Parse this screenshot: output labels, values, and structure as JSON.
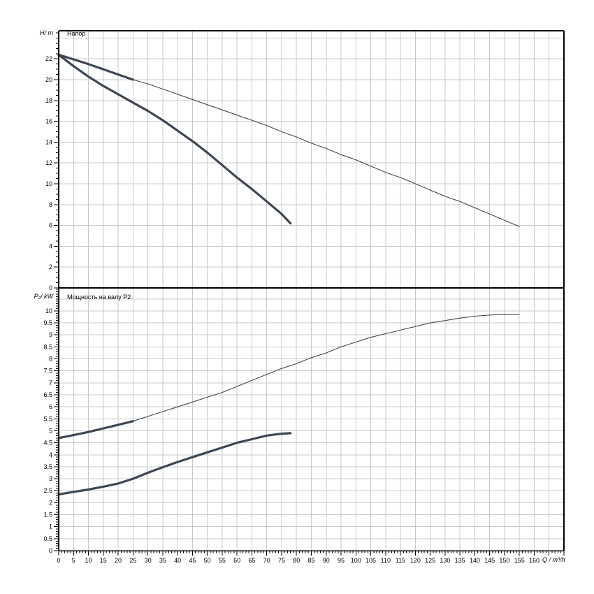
{
  "figure": {
    "background": "#ffffff",
    "grid_color": "#c9c9c9",
    "axis_color": "#000000",
    "curve_color": "#3d4754"
  },
  "chart_data": [
    {
      "type": "line",
      "panel": "top",
      "title": "Напор",
      "ylabel": "H/ m",
      "xlabel": "Q / m³/h",
      "xlim": [
        0,
        170
      ],
      "ylim": [
        0,
        24.7
      ],
      "grid": true,
      "legend": "none",
      "x_tick_labels": [
        0,
        5,
        10,
        15,
        20,
        25,
        30,
        35,
        40,
        45,
        50,
        55,
        60,
        65,
        70,
        75,
        80,
        85,
        90,
        95,
        100,
        105,
        110,
        115,
        120,
        125,
        130,
        135,
        140,
        145,
        150,
        155,
        160
      ],
      "x_tick_step": 5,
      "x_minor_step": 1,
      "y_tick_labels": [
        0,
        2,
        4,
        6,
        8,
        10,
        12,
        14,
        16,
        18,
        20,
        22
      ],
      "y_grid_step": 2,
      "y_minor_step": 0.5,
      "series": [
        {
          "name": "head-curve-full-range",
          "thick_until": 25,
          "points": [
            [
              0,
              22.4
            ],
            [
              5,
              21.95
            ],
            [
              10,
              21.5
            ],
            [
              15,
              21.0
            ],
            [
              20,
              20.5
            ],
            [
              25,
              20.0
            ],
            [
              30,
              19.6
            ],
            [
              35,
              19.1
            ],
            [
              40,
              18.6
            ],
            [
              45,
              18.1
            ],
            [
              50,
              17.6
            ],
            [
              55,
              17.1
            ],
            [
              60,
              16.6
            ],
            [
              65,
              16.1
            ],
            [
              70,
              15.6
            ],
            [
              75,
              15.0
            ],
            [
              80,
              14.5
            ],
            [
              85,
              13.9
            ],
            [
              90,
              13.4
            ],
            [
              95,
              12.8
            ],
            [
              100,
              12.3
            ],
            [
              105,
              11.7
            ],
            [
              110,
              11.1
            ],
            [
              115,
              10.6
            ],
            [
              120,
              10.0
            ],
            [
              125,
              9.4
            ],
            [
              130,
              8.8
            ],
            [
              135,
              8.3
            ],
            [
              140,
              7.7
            ],
            [
              145,
              7.1
            ],
            [
              150,
              6.5
            ],
            [
              155,
              5.9
            ]
          ]
        },
        {
          "name": "head-curve-low-range",
          "thick_until": 78,
          "points": [
            [
              0,
              22.4
            ],
            [
              5,
              21.3
            ],
            [
              10,
              20.3
            ],
            [
              15,
              19.4
            ],
            [
              20,
              18.6
            ],
            [
              25,
              17.8
            ],
            [
              30,
              17.0
            ],
            [
              35,
              16.1
            ],
            [
              40,
              15.1
            ],
            [
              45,
              14.1
            ],
            [
              50,
              13.0
            ],
            [
              55,
              11.8
            ],
            [
              60,
              10.6
            ],
            [
              65,
              9.5
            ],
            [
              70,
              8.3
            ],
            [
              75,
              7.1
            ],
            [
              78,
              6.2
            ]
          ]
        }
      ]
    },
    {
      "type": "line",
      "panel": "bottom",
      "title": "Мощность на валу P2",
      "ylabel": "P₂/ kW",
      "xlabel": "Q / m³/h",
      "xlim": [
        0,
        170
      ],
      "ylim": [
        0,
        10.96
      ],
      "grid": true,
      "legend": "none",
      "x_tick_labels": [
        0,
        5,
        10,
        15,
        20,
        25,
        30,
        35,
        40,
        45,
        50,
        55,
        60,
        65,
        70,
        75,
        80,
        85,
        90,
        95,
        100,
        105,
        110,
        115,
        120,
        125,
        130,
        135,
        140,
        145,
        150,
        155,
        160
      ],
      "x_tick_step": 5,
      "x_minor_step": 1,
      "y_tick_labels": [
        0,
        0.5,
        1,
        1.5,
        2,
        2.5,
        3,
        3.5,
        4,
        4.5,
        5,
        5.5,
        6,
        6.5,
        7,
        7.5,
        8,
        8.5,
        9,
        9.5,
        10
      ],
      "y_grid_step": 0.5,
      "y_minor_step": 0.1,
      "series": [
        {
          "name": "power-curve-full-range",
          "thick_until": 25,
          "points": [
            [
              0,
              4.7
            ],
            [
              5,
              4.82
            ],
            [
              10,
              4.95
            ],
            [
              15,
              5.1
            ],
            [
              20,
              5.25
            ],
            [
              25,
              5.4
            ],
            [
              30,
              5.6
            ],
            [
              35,
              5.8
            ],
            [
              40,
              6.0
            ],
            [
              45,
              6.2
            ],
            [
              50,
              6.4
            ],
            [
              55,
              6.6
            ],
            [
              60,
              6.85
            ],
            [
              65,
              7.1
            ],
            [
              70,
              7.35
            ],
            [
              75,
              7.6
            ],
            [
              80,
              7.8
            ],
            [
              85,
              8.05
            ],
            [
              90,
              8.25
            ],
            [
              95,
              8.5
            ],
            [
              100,
              8.7
            ],
            [
              105,
              8.9
            ],
            [
              110,
              9.05
            ],
            [
              115,
              9.2
            ],
            [
              120,
              9.35
            ],
            [
              125,
              9.5
            ],
            [
              130,
              9.6
            ],
            [
              135,
              9.7
            ],
            [
              140,
              9.78
            ],
            [
              145,
              9.83
            ],
            [
              150,
              9.85
            ],
            [
              155,
              9.86
            ]
          ]
        },
        {
          "name": "power-curve-low-range",
          "thick_until": 78,
          "points": [
            [
              0,
              2.35
            ],
            [
              5,
              2.45
            ],
            [
              10,
              2.55
            ],
            [
              15,
              2.67
            ],
            [
              20,
              2.8
            ],
            [
              25,
              3.0
            ],
            [
              30,
              3.25
            ],
            [
              35,
              3.48
            ],
            [
              40,
              3.7
            ],
            [
              45,
              3.9
            ],
            [
              50,
              4.1
            ],
            [
              55,
              4.3
            ],
            [
              60,
              4.5
            ],
            [
              65,
              4.65
            ],
            [
              70,
              4.8
            ],
            [
              75,
              4.88
            ],
            [
              78,
              4.9
            ]
          ]
        }
      ]
    }
  ]
}
